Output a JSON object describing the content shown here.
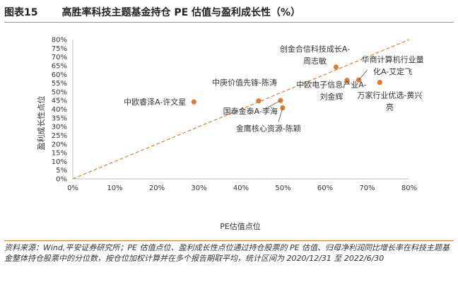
{
  "figure": {
    "label": "图表15",
    "title": "高胜率科技主题基金持仓 PE 估值与盈利成长性（%）"
  },
  "source_note": "资料来源：Wind,平安证券研究所；PE 估值点位、盈利成长性点位通过持仓股票的 PE 估值、归母净利润同比增长率在科技主题基金整体持仓股票中的分位数，按仓位加权计算并在多个报告期取平均，统计区间为 2020/12/31 至 2022/6/30",
  "colors": {
    "point": "#e07b31",
    "diagonal": "#e07b31",
    "axis": "#bfbfbf",
    "text": "#333333"
  },
  "chart_data": {
    "type": "scatter",
    "xlabel": "PE估值点位",
    "ylabel": "盈利成长性点位",
    "xlim": [
      0,
      80
    ],
    "ylim": [
      0,
      80
    ],
    "xticks": [
      "0%",
      "10%",
      "20%",
      "30%",
      "40%",
      "50%",
      "60%",
      "70%",
      "80%"
    ],
    "yticks": [
      "0%",
      "5%",
      "10%",
      "15%",
      "20%",
      "25%",
      "30%",
      "35%",
      "40%",
      "45%",
      "50%",
      "55%",
      "60%",
      "65%",
      "70%",
      "75%",
      "80%"
    ],
    "reference_line": {
      "from": [
        0,
        0
      ],
      "to": [
        80,
        80
      ],
      "style": "dashed"
    },
    "points": [
      {
        "name": "创金合信科技成长A-周志敏",
        "label_lines": [
          "创金合信科技成长A-",
          "周志敏"
        ],
        "x": 62.6,
        "y": 64.2
      },
      {
        "name": "华商计算机行业量化A-艾定飞",
        "label_lines": [
          "华商计算机行业量",
          "化A-艾定飞"
        ],
        "x": 68.0,
        "y": 56.8
      },
      {
        "name": "中欧电子信息产业A-刘金辉",
        "label_lines": [
          "中欧电子信息产业A-",
          "刘金辉"
        ],
        "x": 65.2,
        "y": 56.6
      },
      {
        "name": "万家行业优选-黄兴亮",
        "label_lines": [
          "万家行业优选-黄兴",
          "亮"
        ],
        "x": 73.0,
        "y": 55.4
      },
      {
        "name": "中庚价值先锋-陈涛",
        "label_lines": [
          "中庚价值先锋-陈涛"
        ],
        "x": 44.2,
        "y": 44.8
      },
      {
        "name": "中欧睿泽A-许文星",
        "label_lines": [
          "中欧睿泽A-许文星"
        ],
        "x": 28.8,
        "y": 44.2
      },
      {
        "name": "国泰金泰A-李海",
        "label_lines": [
          "国泰金泰A-李海"
        ],
        "x": 49.4,
        "y": 45.0
      },
      {
        "name": "金鹰核心资源-陈颖",
        "label_lines": [
          "金鹰核心资源-陈颖"
        ],
        "x": 49.9,
        "y": 40.8
      }
    ]
  }
}
